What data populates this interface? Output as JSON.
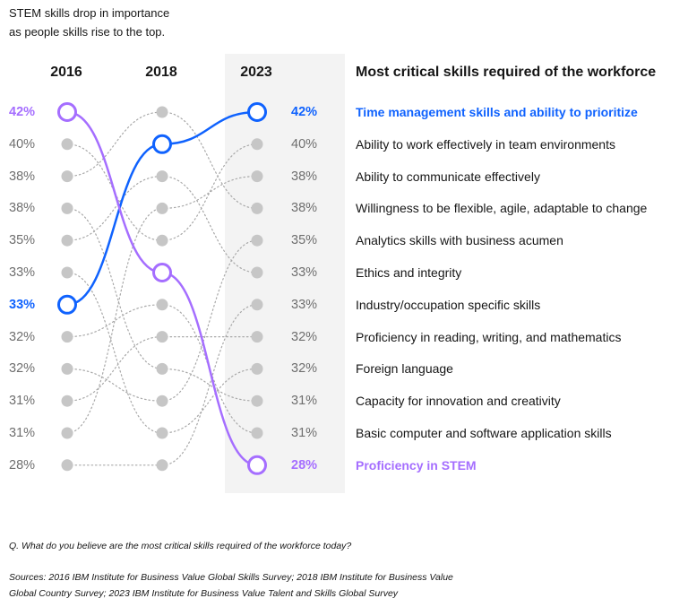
{
  "subtitle_lines": [
    "STEM skills drop in importance",
    "as people skills rise to the top."
  ],
  "footnote_question": "Q. What do you believe are the most critical skills required of the workforce today?",
  "footnote_sources_lines": [
    "Sources: 2016 IBM Institute for Business Value Global Skills Survey; 2018 IBM Institute for Business Value",
    "Global Country Survey; 2023 IBM Institute for Business Value Talent and Skills Global Survey"
  ],
  "colors": {
    "blue": "#0f62fe",
    "purple": "#a56eff",
    "dot": "#c6c6c6",
    "connector": "#a8a8a8",
    "panel": "#f3f3f3"
  },
  "chart_data": {
    "type": "slope",
    "title": "Most critical skills required of the workforce",
    "years": [
      "2016",
      "2018",
      "2023"
    ],
    "ranks_count": 12,
    "values_2016": [
      "42%",
      "40%",
      "38%",
      "38%",
      "35%",
      "33%",
      "33%",
      "32%",
      "32%",
      "31%",
      "31%",
      "28%"
    ],
    "values_2023": [
      "42%",
      "40%",
      "38%",
      "38%",
      "35%",
      "33%",
      "33%",
      "32%",
      "32%",
      "31%",
      "31%",
      "28%"
    ],
    "skills_2023": [
      "Time management skills and ability to prioritize",
      "Ability to work effectively in team environments",
      "Ability to communicate effectively",
      "Willingness to be flexible, agile, adaptable to change",
      "Analytics skills with business acumen",
      "Ethics and integrity",
      "Industry/occupation specific skills",
      "Proficiency in reading, writing, and mathematics",
      "Foreign language",
      "Capacity for innovation and creativity",
      "Basic computer and software application skills",
      "Proficiency in STEM"
    ],
    "highlighted": [
      {
        "skill": "Time management skills and ability to prioritize",
        "color": "blue",
        "ranks": [
          6,
          1,
          0
        ]
      },
      {
        "skill": "Proficiency in STEM",
        "color": "purple",
        "ranks": [
          0,
          5,
          11
        ]
      }
    ],
    "background_links_2016_2018": [
      [
        1,
        4
      ],
      [
        2,
        0
      ],
      [
        3,
        8
      ],
      [
        4,
        2
      ],
      [
        5,
        10
      ],
      [
        7,
        6
      ],
      [
        8,
        9
      ],
      [
        9,
        7
      ],
      [
        10,
        3
      ],
      [
        11,
        11
      ]
    ],
    "background_links_2018_2023": [
      [
        0,
        3
      ],
      [
        2,
        5
      ],
      [
        3,
        2
      ],
      [
        4,
        1
      ],
      [
        6,
        10
      ],
      [
        7,
        7
      ],
      [
        8,
        9
      ],
      [
        9,
        4
      ],
      [
        10,
        8
      ],
      [
        11,
        6
      ]
    ]
  }
}
